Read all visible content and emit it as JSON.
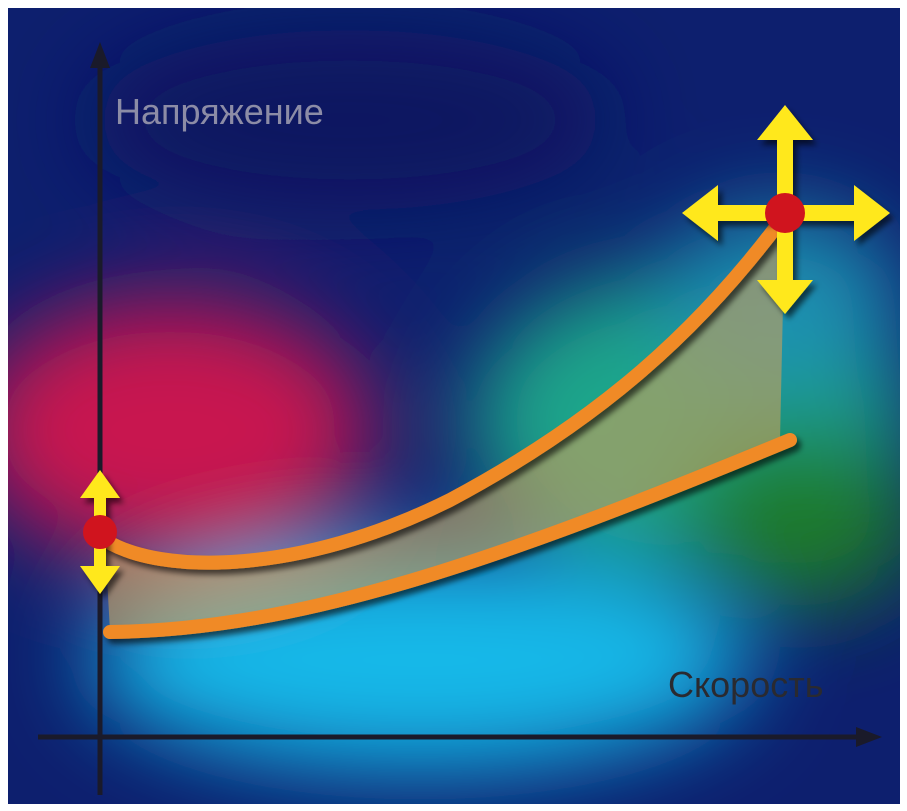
{
  "axes": {
    "y_label": "Напряжение",
    "x_label": "Скорость"
  }
}
